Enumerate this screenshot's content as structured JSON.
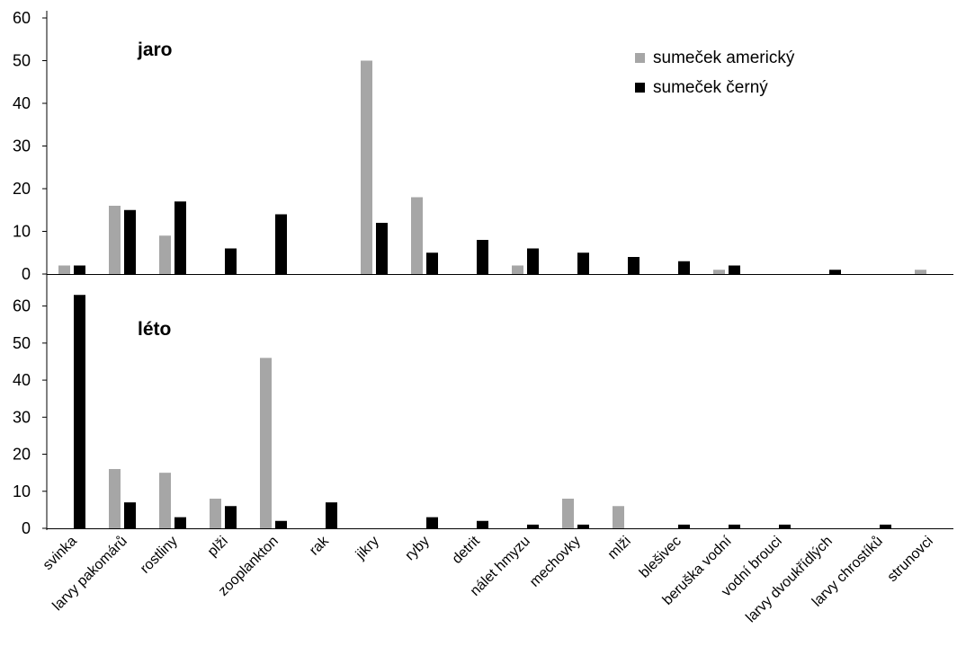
{
  "chart_data": {
    "type": "bar",
    "categories": [
      "svinka",
      "larvy pakomárů",
      "rostliny",
      "plži",
      "zooplankton",
      "rak",
      "jikry",
      "ryby",
      "detrit",
      "nálet hmyzu",
      "mechovky",
      "mlži",
      "blešivec",
      "beruška vodní",
      "vodní brouci",
      "larvy dvoukřídlých",
      "larvy chrostíků",
      "strunovci"
    ],
    "legend": {
      "position": "top-right",
      "entries": [
        {
          "name": "sumeček americký",
          "color": "#a6a6a6"
        },
        {
          "name": "sumeček černý",
          "color": "#000000"
        }
      ]
    },
    "panels": [
      {
        "title": "jaro",
        "ylim": [
          0,
          60
        ],
        "yticks": [
          0,
          10,
          20,
          30,
          40,
          50,
          60
        ],
        "series": [
          {
            "name": "sumeček americký",
            "color": "#a6a6a6",
            "values": [
              2,
              16,
              9,
              0,
              0,
              0,
              50,
              18,
              0,
              2,
              0,
              0,
              0,
              1,
              0,
              0,
              0,
              1
            ]
          },
          {
            "name": "sumeček černý",
            "color": "#000000",
            "values": [
              2,
              15,
              17,
              6,
              14,
              0,
              12,
              5,
              8,
              6,
              5,
              4,
              3,
              2,
              0,
              1,
              0,
              0
            ]
          }
        ]
      },
      {
        "title": "léto",
        "ylim": [
          0,
          65
        ],
        "yticks": [
          0,
          10,
          20,
          30,
          40,
          50,
          60
        ],
        "series": [
          {
            "name": "sumeček americký",
            "color": "#a6a6a6",
            "values": [
              0,
              16,
              15,
              8,
              46,
              0,
              0,
              0,
              0,
              0,
              8,
              6,
              0,
              0,
              0,
              0,
              0,
              0
            ]
          },
          {
            "name": "sumeček černý",
            "color": "#000000",
            "values": [
              63,
              7,
              3,
              6,
              2,
              7,
              0,
              3,
              2,
              1,
              1,
              0,
              1,
              1,
              1,
              0,
              1,
              0
            ]
          }
        ]
      }
    ],
    "grid": false
  }
}
